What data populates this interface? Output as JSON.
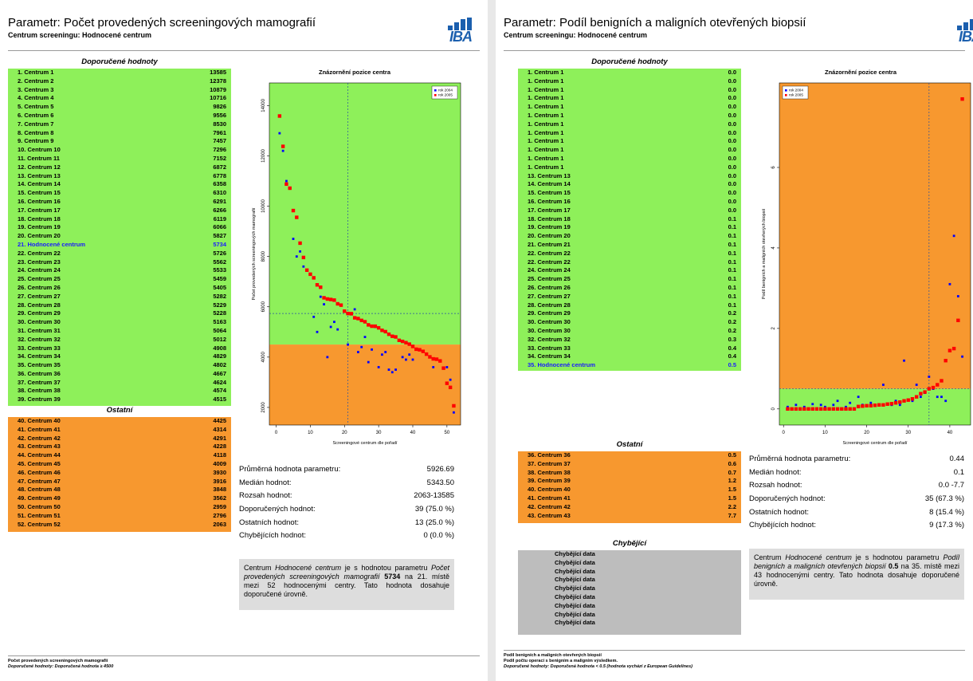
{
  "page1": {
    "title": "Parametr: Počet provedených screeningových mamografií",
    "subtitle": "Centrum screeningu: Hodnocené centrum",
    "logo": "IBA",
    "rec_header": "Doporučené hodnoty",
    "other_header": "Ostatní",
    "rec_rows": [
      {
        "label": "1. Centrum 1",
        "value": "13585"
      },
      {
        "label": "2. Centrum 2",
        "value": "12378"
      },
      {
        "label": "3. Centrum 3",
        "value": "10879"
      },
      {
        "label": "4. Centrum 4",
        "value": "10716"
      },
      {
        "label": "5. Centrum 5",
        "value": "9826"
      },
      {
        "label": "6. Centrum 6",
        "value": "9556"
      },
      {
        "label": "7. Centrum 7",
        "value": "8530"
      },
      {
        "label": "8. Centrum 8",
        "value": "7961"
      },
      {
        "label": "9. Centrum 9",
        "value": "7457"
      },
      {
        "label": "10. Centrum 10",
        "value": "7296"
      },
      {
        "label": "11. Centrum 11",
        "value": "7152"
      },
      {
        "label": "12. Centrum 12",
        "value": "6872"
      },
      {
        "label": "13. Centrum 13",
        "value": "6778"
      },
      {
        "label": "14. Centrum 14",
        "value": "6358"
      },
      {
        "label": "15. Centrum 15",
        "value": "6310"
      },
      {
        "label": "16. Centrum 16",
        "value": "6291"
      },
      {
        "label": "17. Centrum 17",
        "value": "6266"
      },
      {
        "label": "18. Centrum 18",
        "value": "6119"
      },
      {
        "label": "19. Centrum 19",
        "value": "6066"
      },
      {
        "label": "20. Centrum 20",
        "value": "5827"
      },
      {
        "label": "21. Hodnocené centrum",
        "value": "5734",
        "hi": true
      },
      {
        "label": "22. Centrum 22",
        "value": "5726"
      },
      {
        "label": "23. Centrum 23",
        "value": "5562"
      },
      {
        "label": "24. Centrum 24",
        "value": "5533"
      },
      {
        "label": "25. Centrum 25",
        "value": "5459"
      },
      {
        "label": "26. Centrum 26",
        "value": "5405"
      },
      {
        "label": "27. Centrum 27",
        "value": "5282"
      },
      {
        "label": "28. Centrum 28",
        "value": "5229"
      },
      {
        "label": "29. Centrum 29",
        "value": "5228"
      },
      {
        "label": "30. Centrum 30",
        "value": "5163"
      },
      {
        "label": "31. Centrum 31",
        "value": "5064"
      },
      {
        "label": "32. Centrum 32",
        "value": "5012"
      },
      {
        "label": "33. Centrum 33",
        "value": "4908"
      },
      {
        "label": "34. Centrum 34",
        "value": "4829"
      },
      {
        "label": "35. Centrum 35",
        "value": "4802"
      },
      {
        "label": "36. Centrum 36",
        "value": "4667"
      },
      {
        "label": "37. Centrum 37",
        "value": "4624"
      },
      {
        "label": "38. Centrum 38",
        "value": "4574"
      },
      {
        "label": "39. Centrum 39",
        "value": "4515"
      }
    ],
    "other_rows": [
      {
        "label": "40. Centrum 40",
        "value": "4425"
      },
      {
        "label": "41. Centrum 41",
        "value": "4314"
      },
      {
        "label": "42. Centrum 42",
        "value": "4291"
      },
      {
        "label": "43. Centrum 43",
        "value": "4228"
      },
      {
        "label": "44. Centrum 44",
        "value": "4118"
      },
      {
        "label": "45. Centrum 45",
        "value": "4009"
      },
      {
        "label": "46. Centrum 46",
        "value": "3930"
      },
      {
        "label": "47. Centrum 47",
        "value": "3916"
      },
      {
        "label": "48. Centrum 48",
        "value": "3848"
      },
      {
        "label": "49. Centrum 49",
        "value": "3562"
      },
      {
        "label": "50. Centrum 50",
        "value": "2959"
      },
      {
        "label": "51. Centrum 51",
        "value": "2796"
      },
      {
        "label": "52. Centrum 52",
        "value": "2063"
      }
    ],
    "stats": [
      {
        "label": "Průměrná hodnota parametru:",
        "value": "5926.69"
      },
      {
        "label": "Medián hodnot:",
        "value": "5343.50"
      },
      {
        "label": "Rozsah hodnot:",
        "value": "2063-13585"
      },
      {
        "label": "Doporučených hodnot:",
        "value": "39 (75.0 %)"
      },
      {
        "label": "Ostatních hodnot:",
        "value": "13 (25.0 %)"
      },
      {
        "label": "Chybějících hodnot:",
        "value": "0 (0.0 %)"
      }
    ],
    "note": {
      "t1": "Centrum ",
      "t2": "Hodnocené centrum",
      "t3": " je s hodnotou parametru ",
      "t4": "Počet provedených screeningových mamografií",
      "t5": " 5734",
      "t6": " na 21. místě mezi 52 hodnocenými centry. Tato hodnota dosahuje doporučené úrovně."
    },
    "footer": {
      "line1": "Počet provedených screeningových mamografií",
      "line2": "Doporučené hodnoty: Doporučená hodnota ≥ 4500"
    },
    "chart_data": {
      "type": "scatter",
      "title": "Znázornění pozice centra",
      "xlabel": "Screeningové centrum dle pořadí",
      "ylabel": "Počet provedených screeningových mamografií",
      "xlim": [
        -2,
        54
      ],
      "ylim": [
        1300,
        14900
      ],
      "xticks": [
        0,
        10,
        20,
        30,
        40,
        50
      ],
      "yticks": [
        2000,
        4000,
        6000,
        8000,
        10000,
        12000,
        14000
      ],
      "threshold": 4500,
      "center_x": 21,
      "center_y": 5734,
      "legend": [
        "rok 2004",
        "rok 2005"
      ],
      "series": [
        {
          "name": "rok 2005",
          "color": "#ff0000",
          "values": [
            13585,
            12378,
            10879,
            10716,
            9826,
            9556,
            8530,
            7961,
            7457,
            7296,
            7152,
            6872,
            6778,
            6358,
            6310,
            6291,
            6266,
            6119,
            6066,
            5827,
            5734,
            5726,
            5562,
            5533,
            5459,
            5405,
            5282,
            5229,
            5228,
            5163,
            5064,
            5012,
            4908,
            4829,
            4802,
            4667,
            4624,
            4574,
            4515,
            4425,
            4314,
            4291,
            4228,
            4118,
            4009,
            3930,
            3916,
            3848,
            3562,
            2959,
            2796,
            2063
          ]
        },
        {
          "name": "rok 2004",
          "color": "#0000ff",
          "values": [
            12900,
            12200,
            11000,
            null,
            8700,
            8000,
            8200,
            7600,
            null,
            null,
            5600,
            5000,
            6400,
            6100,
            4000,
            5200,
            5400,
            5100,
            null,
            null,
            4500,
            5700,
            5900,
            4200,
            4400,
            4800,
            3800,
            4300,
            5200,
            3600,
            4100,
            4200,
            3500,
            3400,
            3500,
            null,
            4000,
            3900,
            4100,
            3900,
            null,
            null,
            null,
            null,
            4000,
            3600,
            null,
            null,
            null,
            3600,
            3100,
            1800
          ]
        }
      ]
    }
  },
  "page2": {
    "title": "Parametr: Podíl benigních a maligních otevřených biopsií",
    "subtitle": "Centrum screeningu: Hodnocené centrum",
    "logo": "IBA",
    "rec_header": "Doporučené hodnoty",
    "other_header": "Ostatní",
    "missing_header": "Chybějící",
    "rec_rows": [
      {
        "label": "1. Centrum 1",
        "value": "0.0"
      },
      {
        "label": "1. Centrum 1",
        "value": "0.0"
      },
      {
        "label": "1. Centrum 1",
        "value": "0.0"
      },
      {
        "label": "1. Centrum 1",
        "value": "0.0"
      },
      {
        "label": "1. Centrum 1",
        "value": "0.0"
      },
      {
        "label": "1. Centrum 1",
        "value": "0.0"
      },
      {
        "label": "1. Centrum 1",
        "value": "0.0"
      },
      {
        "label": "1. Centrum 1",
        "value": "0.0"
      },
      {
        "label": "1. Centrum 1",
        "value": "0.0"
      },
      {
        "label": "1. Centrum 1",
        "value": "0.0"
      },
      {
        "label": "1. Centrum 1",
        "value": "0.0"
      },
      {
        "label": "1. Centrum 1",
        "value": "0.0"
      },
      {
        "label": "13. Centrum 13",
        "value": "0.0"
      },
      {
        "label": "14. Centrum 14",
        "value": "0.0"
      },
      {
        "label": "15. Centrum 15",
        "value": "0.0"
      },
      {
        "label": "16. Centrum 16",
        "value": "0.0"
      },
      {
        "label": "17. Centrum 17",
        "value": "0.0"
      },
      {
        "label": "18. Centrum 18",
        "value": "0.1"
      },
      {
        "label": "19. Centrum 19",
        "value": "0.1"
      },
      {
        "label": "20. Centrum 20",
        "value": "0.1"
      },
      {
        "label": "21. Centrum 21",
        "value": "0.1"
      },
      {
        "label": "22. Centrum 22",
        "value": "0.1"
      },
      {
        "label": "22. Centrum 22",
        "value": "0.1"
      },
      {
        "label": "24. Centrum 24",
        "value": "0.1"
      },
      {
        "label": "25. Centrum 25",
        "value": "0.1"
      },
      {
        "label": "26. Centrum 26",
        "value": "0.1"
      },
      {
        "label": "27. Centrum 27",
        "value": "0.1"
      },
      {
        "label": "28. Centrum 28",
        "value": "0.1"
      },
      {
        "label": "29. Centrum 29",
        "value": "0.2"
      },
      {
        "label": "30. Centrum 30",
        "value": "0.2"
      },
      {
        "label": "30. Centrum 30",
        "value": "0.2"
      },
      {
        "label": "32. Centrum 32",
        "value": "0.3"
      },
      {
        "label": "33. Centrum 33",
        "value": "0.4"
      },
      {
        "label": "34. Centrum 34",
        "value": "0.4"
      },
      {
        "label": "35. Hodnocené centrum",
        "value": "0.5",
        "hi": true
      }
    ],
    "other_rows": [
      {
        "label": "36. Centrum 36",
        "value": "0.5"
      },
      {
        "label": "37. Centrum 37",
        "value": "0.6"
      },
      {
        "label": "38. Centrum 38",
        "value": "0.7"
      },
      {
        "label": "39. Centrum 39",
        "value": "1.2"
      },
      {
        "label": "40. Centrum 40",
        "value": "1.5"
      },
      {
        "label": "41. Centrum 41",
        "value": "1.5"
      },
      {
        "label": "42. Centrum 42",
        "value": "2.2"
      },
      {
        "label": "43. Centrum 43",
        "value": "7.7"
      }
    ],
    "missing_rows": [
      "Chybějící data",
      "Chybějící data",
      "Chybějící data",
      "Chybějící data",
      "Chybějící data",
      "Chybějící data",
      "Chybějící data",
      "Chybějící data",
      "Chybějící data"
    ],
    "stats": [
      {
        "label": "Průměrná hodnota parametru:",
        "value": "0.44"
      },
      {
        "label": "Medián hodnot:",
        "value": "0.1"
      },
      {
        "label": "Rozsah hodnot:",
        "value": "0.0 -7.7"
      },
      {
        "label": "Doporučených hodnot:",
        "value": "35 (67.3 %)"
      },
      {
        "label": "Ostatních hodnot:",
        "value": "8 (15.4 %)"
      },
      {
        "label": "Chybějících hodnot:",
        "value": "9 (17.3 %)"
      }
    ],
    "note": {
      "t1": "Centrum ",
      "t2": "Hodnocené centrum",
      "t3": " je s hodnotou parametru ",
      "t4": "Podíl benigních a maligních otevřených biopsií",
      "t5": " 0.5",
      "t6": " na 35. místě mezi 43 hodnocenými centry. Tato hodnota dosahuje doporučené úrovně."
    },
    "footer": {
      "line1": "Podíl benigních a maligních otevřených biopsií",
      "line2": "Podíl počtu operací s benigním a maligním výsledkem.",
      "line3": "Doporučené hodnoty: Doporučená hodnota < 0.5 (hodnota vychází z European Guidelines)"
    },
    "chart_data": {
      "type": "scatter",
      "title": "Znázornění pozice centra",
      "xlabel": "Screeningové centrum dle pořadí",
      "ylabel": "Podíl benigních a maligních otevřených biopsií",
      "xlim": [
        -1,
        45
      ],
      "ylim": [
        -0.4,
        8.1
      ],
      "xticks": [
        0,
        10,
        20,
        30,
        40
      ],
      "yticks": [
        0,
        2,
        4,
        6
      ],
      "threshold": 0.5,
      "center_x": 35,
      "center_y": 0.5,
      "legend": [
        "rok 2004",
        "rok 2005"
      ],
      "series": [
        {
          "name": "rok 2005",
          "color": "#ff0000",
          "values": [
            0.0,
            0.0,
            0.0,
            0.0,
            0.0,
            0.0,
            0.0,
            0.0,
            0.0,
            0.0,
            0.0,
            0.0,
            0.0,
            0.0,
            0.0,
            0.0,
            0.0,
            0.06,
            0.07,
            0.08,
            0.08,
            0.09,
            0.1,
            0.1,
            0.12,
            0.13,
            0.15,
            0.17,
            0.2,
            0.22,
            0.25,
            0.3,
            0.38,
            0.42,
            0.5,
            0.53,
            0.6,
            0.7,
            1.2,
            1.45,
            1.5,
            2.2,
            7.7
          ]
        },
        {
          "name": "rok 2004",
          "color": "#0000ff",
          "values": [
            0.05,
            null,
            0.1,
            null,
            0.05,
            null,
            0.12,
            null,
            0.1,
            0.05,
            null,
            0.1,
            0.2,
            null,
            0.05,
            0.15,
            null,
            0.3,
            0.1,
            null,
            0.15,
            null,
            0.1,
            0.6,
            null,
            0.1,
            0.2,
            0.1,
            1.2,
            null,
            0.2,
            0.6,
            0.3,
            0.4,
            0.8,
            0.5,
            0.3,
            0.3,
            0.2,
            3.1,
            4.3,
            2.8,
            1.3
          ]
        }
      ]
    }
  }
}
